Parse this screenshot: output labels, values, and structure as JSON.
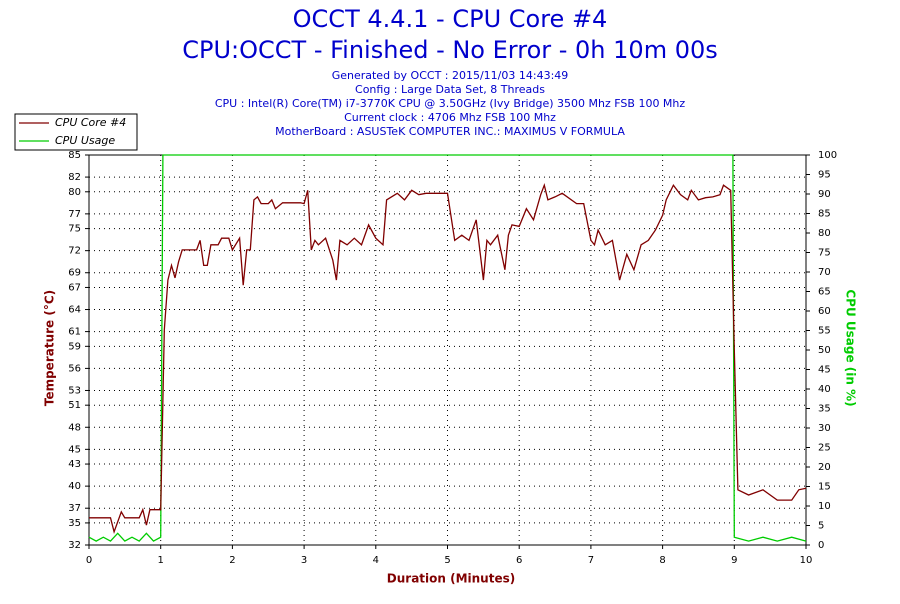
{
  "chart_data": {
    "type": "line",
    "title": "OCCT 4.4.1 - CPU Core #4",
    "subtitle": "CPU:OCCT - Finished - No Error - 0h 10m 00s",
    "info": [
      "Generated by OCCT : 2015/11/03 14:43:49",
      "Config : Large Data Set, 8 Threads",
      "CPU : Intel(R) Core(TM) i7-3770K CPU @ 3.50GHz (Ivy Bridge) 3500 Mhz FSB 100 Mhz",
      "Current clock : 4706 Mhz FSB 100 Mhz",
      "MotherBoard : ASUSTeK COMPUTER INC.: MAXIMUS V FORMULA"
    ],
    "x_label": "Duration (Minutes)",
    "y_label": "Temperature (°C)",
    "y2_label": "CPU Usage (in %)",
    "xlim": [
      0,
      10
    ],
    "xticks": [
      0,
      1,
      2,
      3,
      4,
      5,
      6,
      7,
      8,
      9,
      10
    ],
    "ylim": [
      32,
      85
    ],
    "yticks": [
      32,
      35,
      37,
      40,
      43,
      45,
      48,
      51,
      53,
      56,
      59,
      61,
      64,
      67,
      69,
      72,
      75,
      77,
      80,
      82,
      85
    ],
    "y2lim": [
      0,
      100
    ],
    "y2ticks": [
      0,
      5,
      10,
      15,
      20,
      25,
      30,
      35,
      40,
      45,
      50,
      55,
      60,
      65,
      70,
      75,
      80,
      85,
      90,
      95,
      100
    ],
    "grid": true,
    "series": [
      {
        "name": "CPU Core #4",
        "color": "#800000",
        "x": [
          0,
          0.3,
          0.35,
          0.45,
          0.5,
          0.7,
          0.75,
          0.8,
          0.85,
          1.0,
          1.05,
          1.1,
          1.15,
          1.2,
          1.25,
          1.3,
          1.5,
          1.55,
          1.6,
          1.65,
          1.7,
          1.8,
          1.85,
          1.95,
          2.0,
          2.1,
          2.15,
          2.2,
          2.25,
          2.3,
          2.35,
          2.4,
          2.5,
          2.55,
          2.6,
          2.7,
          2.95,
          3.0,
          3.05,
          3.1,
          3.15,
          3.2,
          3.3,
          3.4,
          3.45,
          3.5,
          3.6,
          3.7,
          3.8,
          3.9,
          4.0,
          4.1,
          4.15,
          4.3,
          4.4,
          4.5,
          4.6,
          4.7,
          5.0,
          5.1,
          5.2,
          5.3,
          5.4,
          5.45,
          5.5,
          5.55,
          5.6,
          5.7,
          5.8,
          5.85,
          5.9,
          6.0,
          6.1,
          6.2,
          6.3,
          6.35,
          6.4,
          6.5,
          6.6,
          6.8,
          6.9,
          7.0,
          7.05,
          7.1,
          7.2,
          7.3,
          7.4,
          7.5,
          7.6,
          7.7,
          7.8,
          7.9,
          8.0,
          8.05,
          8.15,
          8.25,
          8.35,
          8.4,
          8.5,
          8.6,
          8.7,
          8.8,
          8.85,
          8.95,
          9.0,
          9.05,
          9.2,
          9.4,
          9.6,
          9.8,
          9.9,
          10
        ],
        "values": [
          35.7,
          35.7,
          33.8,
          36.5,
          35.7,
          35.7,
          36.8,
          34.7,
          36.8,
          36.8,
          61.2,
          68,
          70,
          68.3,
          70.5,
          72.1,
          72.1,
          73.4,
          70,
          70,
          72.8,
          72.8,
          73.7,
          73.7,
          72.1,
          73.7,
          67.3,
          72.1,
          72.1,
          78.9,
          79.3,
          78.4,
          78.4,
          78.9,
          77.7,
          78.5,
          78.5,
          78.4,
          80.2,
          72.1,
          73.4,
          72.8,
          73.7,
          70.7,
          68,
          73.4,
          72.8,
          73.7,
          72.8,
          75.5,
          73.7,
          72.8,
          78.9,
          79.8,
          78.9,
          80.2,
          79.6,
          79.8,
          79.8,
          73.4,
          74.1,
          73.4,
          76.2,
          72.1,
          68,
          73.4,
          72.8,
          74.1,
          69.4,
          74.1,
          75.5,
          75.3,
          77.7,
          76.2,
          79.6,
          80.9,
          78.9,
          79.3,
          79.8,
          78.4,
          78.4,
          73.4,
          72.8,
          74.8,
          72.8,
          73.4,
          68,
          71.5,
          69.4,
          72.8,
          73.4,
          74.8,
          76.8,
          78.9,
          80.9,
          79.6,
          78.9,
          80.2,
          78.9,
          79.2,
          79.3,
          79.6,
          80.9,
          80.2,
          58.5,
          39.5,
          38.8,
          39.5,
          38.1,
          38.1,
          39.5,
          39.7
        ]
      },
      {
        "name": "CPU Usage",
        "color": "#00cc00",
        "axis": "y2",
        "x": [
          0,
          0.1,
          0.2,
          0.3,
          0.4,
          0.5,
          0.6,
          0.7,
          0.8,
          0.9,
          1.0,
          1.03,
          8.98,
          9.0,
          9.2,
          9.4,
          9.6,
          9.8,
          10
        ],
        "values": [
          2,
          1,
          2,
          1,
          3,
          1,
          2,
          1,
          3,
          1,
          2,
          100,
          100,
          2,
          1,
          2,
          1,
          2,
          1
        ]
      }
    ]
  }
}
